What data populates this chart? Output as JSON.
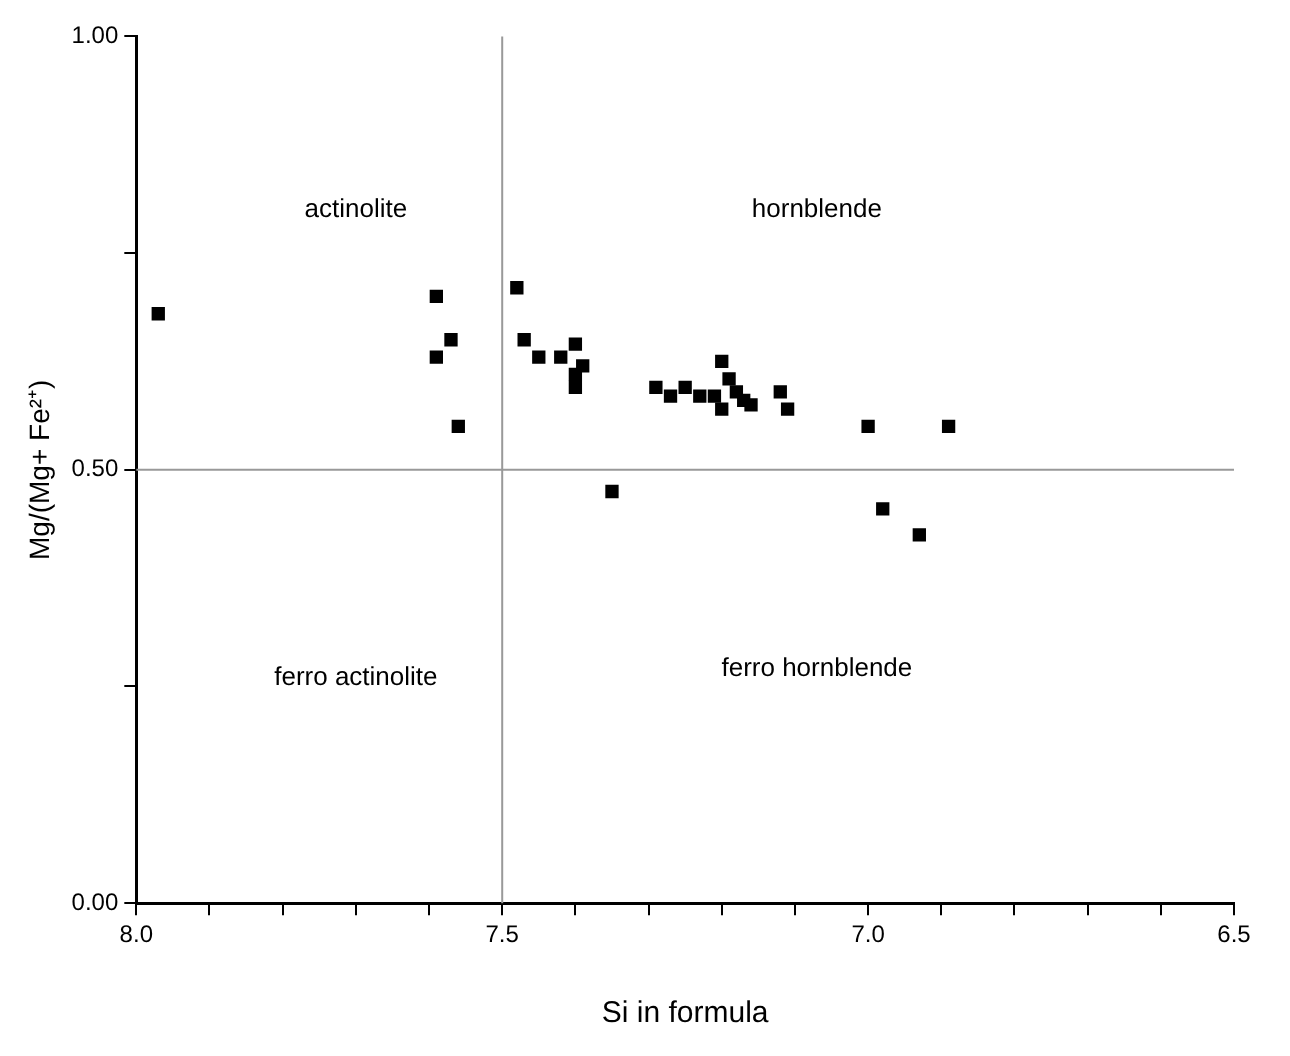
{
  "chart_data": {
    "type": "scatter",
    "xlabel": "Si in formula",
    "ylabel": "Mg/(Mg+ Fe²⁺)",
    "xlim": [
      8.0,
      6.5
    ],
    "ylim": [
      0,
      1
    ],
    "xticks": [
      {
        "value": 8.0,
        "label": "8.0"
      },
      {
        "value": 7.9,
        "label": null
      },
      {
        "value": 7.8,
        "label": null
      },
      {
        "value": 7.7,
        "label": null
      },
      {
        "value": 7.6,
        "label": null
      },
      {
        "value": 7.5,
        "label": "7.5"
      },
      {
        "value": 7.4,
        "label": null
      },
      {
        "value": 7.3,
        "label": null
      },
      {
        "value": 7.2,
        "label": null
      },
      {
        "value": 7.1,
        "label": null
      },
      {
        "value": 7.0,
        "label": "7.0"
      },
      {
        "value": 6.9,
        "label": null
      },
      {
        "value": 6.8,
        "label": null
      },
      {
        "value": 6.7,
        "label": null
      },
      {
        "value": 6.6,
        "label": null
      },
      {
        "value": 6.5,
        "label": "6.5"
      }
    ],
    "yticks": [
      {
        "value": 0,
        "label": "0.00"
      },
      {
        "value": 0.25,
        "label": null
      },
      {
        "value": 0.5,
        "label": "0.50"
      },
      {
        "value": 0.75,
        "label": null
      },
      {
        "value": 1,
        "label": "1.00"
      }
    ],
    "series": [
      {
        "color": "#000000",
        "x": [
          7.97,
          7.59,
          7.57,
          7.59,
          7.56,
          7.48,
          7.47,
          7.45,
          7.42,
          7.4,
          7.39,
          7.4,
          7.4,
          7.35,
          7.29,
          7.27,
          7.25,
          7.23,
          7.21,
          7.2,
          7.19,
          7.18,
          7.2,
          7.17,
          7.16,
          7.12,
          7.11,
          7.0,
          6.89,
          6.98,
          6.93
        ],
        "values": [
          0.68,
          0.7,
          0.65,
          0.63,
          0.55,
          0.71,
          0.65,
          0.63,
          0.63,
          0.645,
          0.62,
          0.61,
          0.595,
          0.475,
          0.595,
          0.585,
          0.595,
          0.585,
          0.585,
          0.625,
          0.605,
          0.59,
          0.57,
          0.58,
          0.575,
          0.59,
          0.57,
          0.55,
          0.55,
          0.455,
          0.425
        ]
      }
    ],
    "marker": "square",
    "grid": false,
    "legend": false,
    "ref_lines": [
      {
        "axis": "x",
        "value": 7.5,
        "color": "#999999"
      },
      {
        "axis": "y",
        "value": 0.5,
        "color": "#999999"
      }
    ],
    "annotations": [
      "actinolite",
      "hornblende",
      "ferro actinolite",
      "ferro hornblende"
    ]
  }
}
